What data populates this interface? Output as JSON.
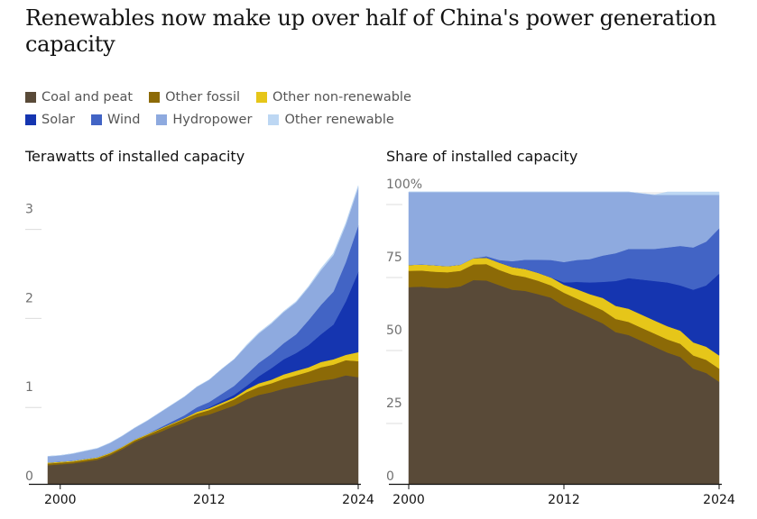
{
  "title": "Renewables now make up over half of China's power generation capacity",
  "legend": [
    {
      "name": "Coal and peat",
      "color": "#594a38"
    },
    {
      "name": "Other fossil",
      "color": "#8c6a07"
    },
    {
      "name": "Other non-renewable",
      "color": "#e6c619"
    },
    {
      "name": "Solar",
      "color": "#1535b0"
    },
    {
      "name": "Wind",
      "color": "#4264c5"
    },
    {
      "name": "Hydropower",
      "color": "#8eaadf"
    },
    {
      "name": "Other renewable",
      "color": "#bdd7f3"
    }
  ],
  "chart_data": [
    {
      "type": "area",
      "stacked": true,
      "title": "Terawatts of installed capacity",
      "x": [
        1999,
        2000,
        2001,
        2002,
        2003,
        2004,
        2005,
        2006,
        2007,
        2008,
        2009,
        2010,
        2011,
        2012,
        2013,
        2014,
        2015,
        2016,
        2017,
        2018,
        2019,
        2020,
        2021,
        2022,
        2023,
        2024
      ],
      "xticks": [
        "2000",
        "2012",
        "2024"
      ],
      "yticks": [
        "0",
        "1",
        "2",
        "3"
      ],
      "ylim": [
        0,
        3.3
      ],
      "series": [
        {
          "name": "Coal and peat",
          "values": [
            0.21,
            0.22,
            0.23,
            0.25,
            0.27,
            0.32,
            0.39,
            0.47,
            0.53,
            0.58,
            0.64,
            0.69,
            0.75,
            0.78,
            0.83,
            0.88,
            0.95,
            1.0,
            1.03,
            1.07,
            1.1,
            1.13,
            1.16,
            1.18,
            1.22,
            1.2
          ]
        },
        {
          "name": "Other fossil",
          "values": [
            0.02,
            0.02,
            0.02,
            0.02,
            0.02,
            0.02,
            0.02,
            0.02,
            0.02,
            0.03,
            0.03,
            0.04,
            0.04,
            0.05,
            0.06,
            0.07,
            0.08,
            0.09,
            0.1,
            0.11,
            0.12,
            0.13,
            0.15,
            0.16,
            0.17,
            0.18
          ]
        },
        {
          "name": "Other non-renewable",
          "values": [
            0.01,
            0.01,
            0.01,
            0.01,
            0.01,
            0.01,
            0.01,
            0.01,
            0.01,
            0.01,
            0.01,
            0.01,
            0.02,
            0.02,
            0.02,
            0.02,
            0.03,
            0.04,
            0.04,
            0.05,
            0.05,
            0.05,
            0.06,
            0.06,
            0.06,
            0.1
          ]
        },
        {
          "name": "Solar",
          "values": [
            0,
            0,
            0,
            0,
            0,
            0,
            0,
            0,
            0,
            0,
            0,
            0,
            0,
            0.01,
            0.02,
            0.03,
            0.04,
            0.08,
            0.13,
            0.17,
            0.2,
            0.25,
            0.31,
            0.39,
            0.6,
            0.9
          ]
        },
        {
          "name": "Wind",
          "values": [
            0,
            0,
            0,
            0,
            0,
            0,
            0,
            0,
            0,
            0.01,
            0.02,
            0.03,
            0.05,
            0.06,
            0.08,
            0.1,
            0.13,
            0.15,
            0.16,
            0.18,
            0.21,
            0.28,
            0.33,
            0.37,
            0.44,
            0.52
          ]
        },
        {
          "name": "Hydropower",
          "values": [
            0.07,
            0.07,
            0.08,
            0.09,
            0.1,
            0.11,
            0.12,
            0.13,
            0.15,
            0.17,
            0.19,
            0.21,
            0.23,
            0.25,
            0.28,
            0.3,
            0.32,
            0.33,
            0.34,
            0.35,
            0.36,
            0.37,
            0.39,
            0.41,
            0.42,
            0.43
          ]
        },
        {
          "name": "Other renewable",
          "values": [
            0,
            0,
            0,
            0,
            0,
            0,
            0,
            0,
            0,
            0,
            0,
            0,
            0,
            0,
            0,
            0,
            0.01,
            0.01,
            0.01,
            0.01,
            0.01,
            0.01,
            0.02,
            0.02,
            0.02,
            0.02
          ]
        }
      ]
    },
    {
      "type": "area",
      "stacked": true,
      "title": "Share of installed capacity",
      "x": [
        2000,
        2001,
        2002,
        2003,
        2004,
        2005,
        2006,
        2007,
        2008,
        2009,
        2010,
        2011,
        2012,
        2013,
        2014,
        2015,
        2016,
        2017,
        2018,
        2019,
        2020,
        2021,
        2022,
        2023,
        2024
      ],
      "xticks": [
        "2000",
        "2012",
        "2024"
      ],
      "yticks": [
        "0",
        "25",
        "50",
        "75",
        "100%"
      ],
      "ylim": [
        0,
        100
      ],
      "series": [
        {
          "name": "Coal and peat",
          "values": [
            67.4,
            67.6,
            67.2,
            67.1,
            67.7,
            69.8,
            69.7,
            68.1,
            66.5,
            66.1,
            65.0,
            63.8,
            61.0,
            59.0,
            57.0,
            55.0,
            52.0,
            51.0,
            49.0,
            47.0,
            45.0,
            43.5,
            39.5,
            38.0,
            35.0
          ]
        },
        {
          "name": "Other fossil",
          "values": [
            5.6,
            5.5,
            5.5,
            5.4,
            5.3,
            5.4,
            5.6,
            5.2,
            5.2,
            4.8,
            4.6,
            4.2,
            4.5,
            4.5,
            4.5,
            4.5,
            4.5,
            4.5,
            4.5,
            4.5,
            4.5,
            4.5,
            4.5,
            4.5,
            4.5
          ]
        },
        {
          "name": "Other non-renewable",
          "values": [
            2.0,
            2.1,
            2.2,
            2.1,
            2.1,
            2.1,
            2.2,
            2.5,
            2.6,
            2.7,
            2.7,
            2.7,
            2.7,
            3.2,
            3.5,
            4.2,
            4.5,
            4.5,
            4.5,
            4.5,
            4.5,
            4.5,
            4.5,
            4.5,
            4.5
          ]
        },
        {
          "name": "Solar",
          "values": [
            0,
            0,
            0,
            0,
            0,
            0,
            0,
            0,
            0,
            0,
            0,
            0,
            0.8,
            2.5,
            4.0,
            5.5,
            8.5,
            10.5,
            12.0,
            13.5,
            15.0,
            15.5,
            18.0,
            21.0,
            28.0
          ]
        },
        {
          "name": "Wind",
          "values": [
            0,
            0,
            0,
            0,
            0,
            0,
            0.5,
            0.9,
            2.0,
            3.2,
            4.5,
            6.0,
            7.0,
            7.5,
            8.0,
            9.0,
            9.5,
            10.0,
            10.5,
            11.0,
            12.0,
            13.5,
            14.5,
            15.0,
            15.5
          ]
        },
        {
          "name": "Hydropower",
          "values": [
            25.0,
            24.8,
            25.1,
            25.4,
            24.9,
            22.7,
            22.0,
            23.3,
            23.7,
            23.2,
            23.2,
            23.3,
            24.0,
            23.3,
            23.0,
            21.8,
            21.0,
            19.5,
            19.0,
            18.5,
            18.0,
            17.5,
            18.0,
            16.0,
            11.5
          ]
        },
        {
          "name": "Other renewable",
          "values": [
            0,
            0,
            0,
            0,
            0,
            0,
            0,
            0,
            0,
            0,
            0,
            0,
            0,
            0,
            0,
            0,
            0,
            0,
            0,
            0,
            1.0,
            1.0,
            1.0,
            1.0,
            1.0
          ]
        }
      ]
    }
  ]
}
